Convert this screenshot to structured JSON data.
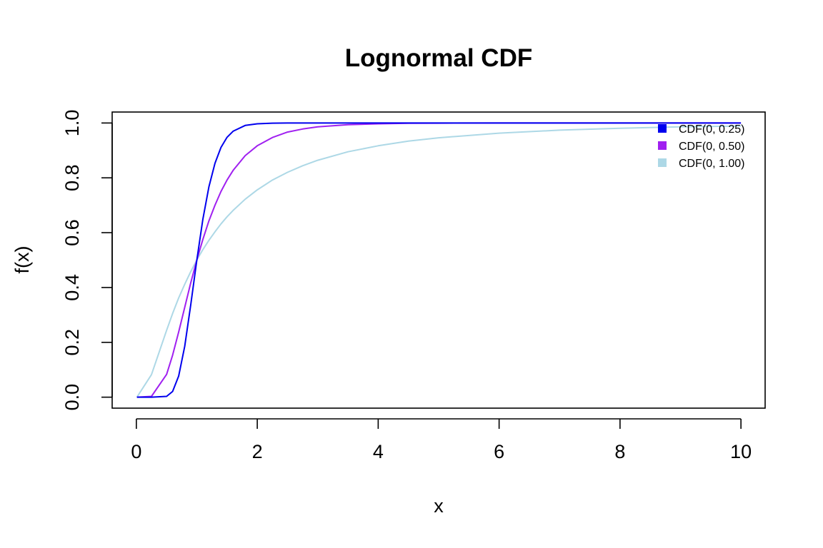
{
  "chart_data": {
    "type": "line",
    "title": "Lognormal CDF",
    "xlabel": "x",
    "ylabel": "f(x)",
    "xlim": [
      -0.4,
      10.4
    ],
    "ylim": [
      -0.04,
      1.04
    ],
    "x_ticks": [
      0,
      2,
      4,
      6,
      8,
      10
    ],
    "y_ticks": [
      0.0,
      0.2,
      0.4,
      0.6,
      0.8,
      1.0
    ],
    "x_tick_labels": [
      "0",
      "2",
      "4",
      "6",
      "8",
      "10"
    ],
    "y_tick_labels": [
      "0.0",
      "0.2",
      "0.4",
      "0.6",
      "0.8",
      "1.0"
    ],
    "grid": false,
    "legend_position": "top-right",
    "x": [
      0.01,
      0.25,
      0.5,
      0.6,
      0.7,
      0.8,
      0.9,
      1.0,
      1.1,
      1.2,
      1.3,
      1.4,
      1.5,
      1.6,
      1.8,
      2.0,
      2.25,
      2.5,
      2.75,
      3.0,
      3.5,
      4.0,
      4.5,
      5.0,
      6.0,
      7.0,
      8.0,
      9.0,
      10.0
    ],
    "series": [
      {
        "name": "CDF(0, 0.25)",
        "color": "#0000EE",
        "values": [
          0,
          0,
          0.003,
          0.021,
          0.077,
          0.186,
          0.337,
          0.5,
          0.648,
          0.767,
          0.853,
          0.911,
          0.948,
          0.97,
          0.991,
          0.997,
          0.9995,
          0.9999,
          1.0,
          1.0,
          1.0,
          1.0,
          1.0,
          1.0,
          1.0,
          1.0,
          1.0,
          1.0,
          1.0
        ]
      },
      {
        "name": "CDF(0, 0.50)",
        "color": "#A020F0",
        "values": [
          0,
          0.003,
          0.083,
          0.153,
          0.238,
          0.328,
          0.417,
          0.5,
          0.575,
          0.643,
          0.7,
          0.75,
          0.792,
          0.827,
          0.881,
          0.917,
          0.947,
          0.967,
          0.978,
          0.986,
          0.994,
          0.997,
          0.999,
          0.9993,
          0.9998,
          1.0,
          1.0,
          1.0,
          1.0
        ]
      },
      {
        "name": "CDF(0, 1.00)",
        "color": "#ADD8E6",
        "values": [
          0,
          0.082,
          0.244,
          0.305,
          0.362,
          0.412,
          0.458,
          0.5,
          0.538,
          0.572,
          0.603,
          0.632,
          0.658,
          0.681,
          0.722,
          0.756,
          0.792,
          0.82,
          0.844,
          0.864,
          0.895,
          0.917,
          0.934,
          0.946,
          0.963,
          0.974,
          0.981,
          0.986,
          0.989
        ]
      }
    ]
  }
}
